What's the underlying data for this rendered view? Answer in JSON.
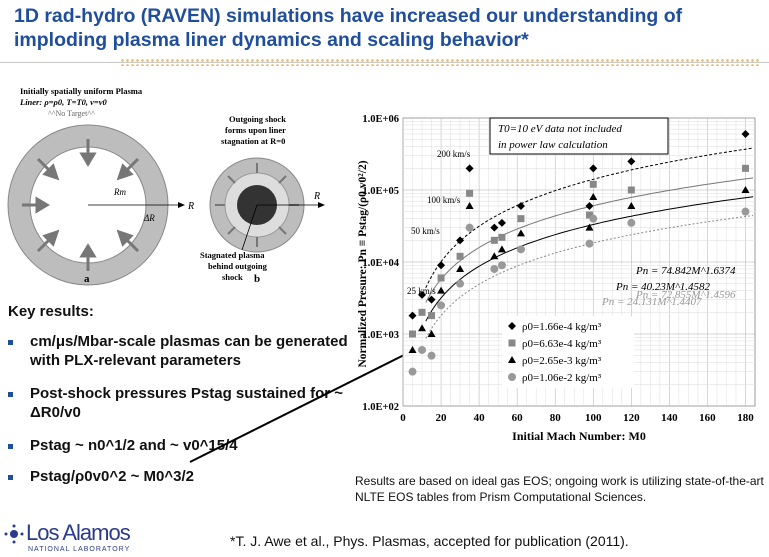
{
  "title_line1": "1D rad-hydro (RAVEN) simulations have increased our understanding of",
  "title_line2": "imploding plasma liner dynamics and scaling behavior*",
  "diagram": {
    "a_caption_l1": "Initially spatially uniform Plasma",
    "a_caption_l2": "Liner: ρ=ρ0, T=T0, v=v0",
    "a_no_target": "^^No Target^^",
    "a_rm": "Rm",
    "a_dr": "ΔR",
    "a_r": "R",
    "a_label": "a",
    "b_caption_l1": "Outgoing shock",
    "b_caption_l2": "forms upon liner",
    "b_caption_l3": "stagnation at R=0",
    "b_r": "R",
    "b_stag_l1": "Stagnated plasma",
    "b_stag_l2": "behind outgoing",
    "b_stag_l3": "shock",
    "b_label": "b"
  },
  "key_results_title": "Key results:",
  "bullets": [
    "cm/μs/Mbar-scale plasmas can be generated with PLX-relevant parameters",
    "Post-shock pressures Pstag sustained for ~ ΔR0/v0",
    "Pstag ~ n0^1/2 and ~ v0^15/4",
    "Pstag/ρ0v0^2 ~ M0^3/2"
  ],
  "chart_data": {
    "type": "scatter",
    "xlabel": "Initial Mach Number: M0",
    "ylabel": "Normalized Presure: Pn ≡ Pstag/(ρ0 v0²/2)",
    "xlim": [
      0,
      185
    ],
    "ylim": [
      100,
      1000000
    ],
    "yscale": "log",
    "x_ticks": [
      "0",
      "20",
      "40",
      "60",
      "80",
      "100",
      "120",
      "140",
      "160",
      "180"
    ],
    "y_ticks": [
      "1.0E+02",
      "1.0E+03",
      "1.0E+04",
      "1.0E+05",
      "1.0E+06"
    ],
    "annotation_box_l1": "T0=10 eV data not included",
    "annotation_box_l2": "in power law calculation",
    "speed_labels": [
      "200 km/s",
      "100 km/s",
      "50 km/s",
      "25 km/s"
    ],
    "fits": [
      {
        "label": "Pn = 74.842M^1.6374",
        "a": 74.842,
        "b": 1.6374
      },
      {
        "label": "Pn = 72.855M^1.4596",
        "a": 72.855,
        "b": 1.4596
      },
      {
        "label": "Pn = 40.23M^1.4582",
        "a": 40.23,
        "b": 1.4582
      },
      {
        "label": "Pn = 24.131M^1.4407",
        "a": 24.131,
        "b": 1.4407
      }
    ],
    "series": [
      {
        "name": "ρ0=1.66e-4 kg/m³",
        "marker": "diamond",
        "points": [
          [
            5,
            1800
          ],
          [
            10,
            3500
          ],
          [
            15,
            3000
          ],
          [
            20,
            9000
          ],
          [
            30,
            20000
          ],
          [
            35,
            200000
          ],
          [
            48,
            30000
          ],
          [
            52,
            35000
          ],
          [
            62,
            60000
          ],
          [
            98,
            60000
          ],
          [
            100,
            200000
          ],
          [
            120,
            250000
          ],
          [
            180,
            600000
          ]
        ]
      },
      {
        "name": "ρ0=6.63e-4 kg/m³",
        "marker": "square",
        "points": [
          [
            5,
            1000
          ],
          [
            10,
            2000
          ],
          [
            15,
            1800
          ],
          [
            20,
            6000
          ],
          [
            30,
            12000
          ],
          [
            35,
            90000
          ],
          [
            48,
            20000
          ],
          [
            52,
            22000
          ],
          [
            62,
            40000
          ],
          [
            98,
            45000
          ],
          [
            100,
            120000
          ],
          [
            120,
            100000
          ],
          [
            180,
            200000
          ]
        ]
      },
      {
        "name": "ρ0=2.65e-3 kg/m³",
        "marker": "triangle",
        "points": [
          [
            5,
            600
          ],
          [
            10,
            1200
          ],
          [
            15,
            1000
          ],
          [
            20,
            4000
          ],
          [
            30,
            8000
          ],
          [
            35,
            60000
          ],
          [
            48,
            12000
          ],
          [
            52,
            15000
          ],
          [
            62,
            25000
          ],
          [
            98,
            30000
          ],
          [
            100,
            80000
          ],
          [
            120,
            60000
          ],
          [
            180,
            100000
          ]
        ]
      },
      {
        "name": "ρ0=1.06e-2 kg/m³",
        "marker": "circle",
        "points": [
          [
            5,
            300
          ],
          [
            10,
            600
          ],
          [
            15,
            500
          ],
          [
            20,
            2500
          ],
          [
            30,
            5000
          ],
          [
            35,
            30000
          ],
          [
            48,
            8000
          ],
          [
            52,
            9000
          ],
          [
            62,
            15000
          ],
          [
            98,
            18000
          ],
          [
            100,
            40000
          ],
          [
            120,
            35000
          ],
          [
            180,
            50000
          ]
        ]
      }
    ]
  },
  "note": "Results are based on ideal gas EOS; ongoing work is utilizing state-of-the-art NLTE EOS tables from Prism Computational Sciences.",
  "footer": "*T. J. Awe et al., Phys. Plasmas, accepted for publication (2011).",
  "logo_name": "Los Alamos",
  "logo_sub": "NATIONAL LABORATORY"
}
